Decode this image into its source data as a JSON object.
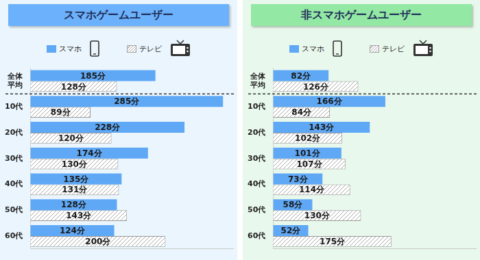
{
  "chart_data": [
    {
      "type": "bar",
      "title": "スマホゲームユーザー",
      "orientation": "horizontal",
      "categories": [
        "全体平均",
        "10代",
        "20代",
        "30代",
        "40代",
        "50代",
        "60代"
      ],
      "series": [
        {
          "name": "スマホ",
          "color": "#5fa8f5",
          "values": [
            185,
            285,
            228,
            174,
            135,
            128,
            124
          ],
          "value_labels": [
            "185分",
            "285分",
            "228分",
            "174分",
            "135分",
            "128分",
            "124分"
          ]
        },
        {
          "name": "テレビ",
          "color": "#a6a6a6",
          "values": [
            128,
            89,
            120,
            130,
            131,
            143,
            200
          ],
          "value_labels": [
            "128分",
            "89分",
            "120分",
            "130分",
            "131分",
            "143分",
            "200分"
          ]
        }
      ],
      "xlim": [
        0,
        300
      ],
      "tick_labels": "y",
      "grid": false,
      "data_labels": true,
      "legend": "top"
    },
    {
      "type": "bar",
      "title": "非スマホゲームユーザー",
      "orientation": "horizontal",
      "categories": [
        "全体平均",
        "10代",
        "20代",
        "30代",
        "40代",
        "50代",
        "60代"
      ],
      "series": [
        {
          "name": "スマホ",
          "color": "#5fa8f5",
          "values": [
            82,
            166,
            143,
            101,
            73,
            58,
            52
          ],
          "value_labels": [
            "82分",
            "166分",
            "143分",
            "101分",
            "73分",
            "58分",
            "52分"
          ]
        },
        {
          "name": "テレビ",
          "color": "#a6a6a6",
          "values": [
            126,
            84,
            102,
            107,
            114,
            130,
            175
          ],
          "value_labels": [
            "126分",
            "84分",
            "102分",
            "107分",
            "114分",
            "130分",
            "175分"
          ]
        }
      ],
      "xlim": [
        0,
        300
      ],
      "tick_labels": "y",
      "grid": false,
      "data_labels": true,
      "legend": "top"
    }
  ]
}
